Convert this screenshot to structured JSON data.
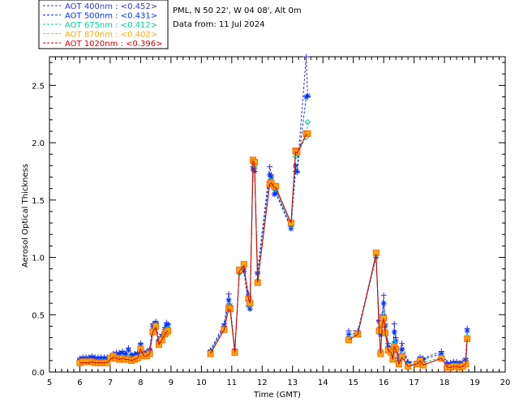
{
  "header": {
    "site_line": "PML, N 50 22', W 04 08', Alt 0m",
    "date_line": "Data from: 11 Jul 2024"
  },
  "chart_data": {
    "type": "line",
    "xlabel": "Time (GMT)",
    "ylabel": "Aerosol Optical Thickness",
    "xlim": [
      5,
      20
    ],
    "ylim": [
      0,
      2.75
    ],
    "x_ticks": [
      "5",
      "6",
      "7",
      "8",
      "9",
      "10",
      "11",
      "12",
      "13",
      "14",
      "15",
      "16",
      "17",
      "18",
      "19",
      "20"
    ],
    "y_ticks": [
      "0.0",
      "0.5",
      "1.0",
      "1.5",
      "2.0",
      "2.5"
    ],
    "grid": false,
    "legend_placement": "top-left-outside",
    "series": [
      {
        "name": "AOT  400nm : <0.452>",
        "color": "#3333cc",
        "marker": "plus",
        "x": [
          6.0,
          6.1,
          6.2,
          6.3,
          6.4,
          6.5,
          6.6,
          6.7,
          6.8,
          6.9,
          7.0,
          7.1,
          7.2,
          7.3,
          7.4,
          7.5,
          7.6,
          7.7,
          7.8,
          7.9,
          8.0,
          8.1,
          8.2,
          8.3,
          8.4,
          8.5,
          8.6,
          8.7,
          8.8,
          8.85,
          8.9,
          10.3,
          10.75,
          10.9,
          10.95,
          11.1,
          11.25,
          11.4,
          11.55,
          11.6,
          11.7,
          11.75,
          11.85,
          12.25,
          12.3,
          12.4,
          12.45,
          12.95,
          13.1,
          13.15,
          13.45,
          13.5,
          14.85,
          15.15,
          15.75,
          15.85,
          15.9,
          15.95,
          16.0,
          16.05,
          16.15,
          16.25,
          16.3,
          16.35,
          16.4,
          16.5,
          16.6,
          16.8,
          17.1,
          17.2,
          17.3,
          17.9,
          18.1,
          18.2,
          18.3,
          18.4,
          18.5,
          18.6,
          18.7,
          18.75
        ],
        "values": [
          0.12,
          0.13,
          0.13,
          0.13,
          0.14,
          0.13,
          0.13,
          0.13,
          0.13,
          0.13,
          0.14,
          0.16,
          0.17,
          0.17,
          0.18,
          0.16,
          0.21,
          0.15,
          0.16,
          0.17,
          0.25,
          0.18,
          0.18,
          0.2,
          0.42,
          0.44,
          0.28,
          0.33,
          0.39,
          0.43,
          0.42,
          0.19,
          0.42,
          0.68,
          0.55,
          0.2,
          0.87,
          0.9,
          0.68,
          0.6,
          1.79,
          1.78,
          0.87,
          1.79,
          1.72,
          1.6,
          1.58,
          1.27,
          1.75,
          1.74,
          2.75,
          2.4,
          0.36,
          0.36,
          1.02,
          0.45,
          0.35,
          0.5,
          0.67,
          0.42,
          0.25,
          0.2,
          0.18,
          0.42,
          0.3,
          0.12,
          0.25,
          0.09,
          0.09,
          0.13,
          0.12,
          0.18,
          0.08,
          0.08,
          0.09,
          0.09,
          0.08,
          0.09,
          0.12,
          0.38
        ]
      },
      {
        "name": "AOT  500nm : <0.431>",
        "color": "#0033ff",
        "marker": "asterisk",
        "x": [
          6.0,
          6.1,
          6.2,
          6.3,
          6.4,
          6.5,
          6.6,
          6.7,
          6.8,
          6.9,
          7.0,
          7.1,
          7.2,
          7.3,
          7.4,
          7.5,
          7.6,
          7.7,
          7.8,
          7.9,
          8.0,
          8.1,
          8.2,
          8.3,
          8.4,
          8.5,
          8.6,
          8.7,
          8.8,
          8.85,
          8.9,
          10.3,
          10.75,
          10.9,
          10.95,
          11.1,
          11.25,
          11.4,
          11.55,
          11.6,
          11.7,
          11.75,
          11.85,
          12.25,
          12.3,
          12.4,
          12.45,
          12.95,
          13.1,
          13.15,
          13.45,
          13.5,
          14.85,
          15.15,
          15.75,
          15.85,
          15.9,
          15.95,
          16.0,
          16.05,
          16.15,
          16.25,
          16.3,
          16.35,
          16.4,
          16.5,
          16.6,
          16.8,
          17.1,
          17.2,
          17.3,
          17.9,
          18.1,
          18.2,
          18.3,
          18.4,
          18.5,
          18.6,
          18.7,
          18.75
        ],
        "values": [
          0.11,
          0.12,
          0.12,
          0.12,
          0.13,
          0.12,
          0.12,
          0.12,
          0.12,
          0.12,
          0.13,
          0.15,
          0.16,
          0.16,
          0.17,
          0.15,
          0.19,
          0.14,
          0.15,
          0.16,
          0.24,
          0.17,
          0.17,
          0.19,
          0.4,
          0.43,
          0.27,
          0.31,
          0.37,
          0.41,
          0.41,
          0.18,
          0.4,
          0.63,
          0.58,
          0.18,
          0.87,
          0.88,
          0.58,
          0.55,
          1.77,
          1.75,
          0.86,
          1.72,
          1.7,
          1.55,
          1.56,
          1.25,
          1.8,
          1.75,
          2.4,
          2.41,
          0.33,
          0.34,
          1.0,
          0.44,
          0.33,
          0.48,
          0.6,
          0.4,
          0.22,
          0.18,
          0.17,
          0.35,
          0.27,
          0.1,
          0.2,
          0.08,
          0.08,
          0.12,
          0.11,
          0.16,
          0.07,
          0.07,
          0.08,
          0.08,
          0.07,
          0.08,
          0.1,
          0.36
        ]
      },
      {
        "name": "AOT  675nm : <0.412>",
        "color": "#00cc99",
        "marker": "diamond",
        "x": [
          6.0,
          6.1,
          6.2,
          6.3,
          6.4,
          6.5,
          6.6,
          6.7,
          6.8,
          6.9,
          7.0,
          7.1,
          7.2,
          7.3,
          7.4,
          7.5,
          7.6,
          7.7,
          7.8,
          7.9,
          8.0,
          8.1,
          8.2,
          8.3,
          8.4,
          8.5,
          8.6,
          8.7,
          8.8,
          8.85,
          8.9,
          10.3,
          10.75,
          10.9,
          10.95,
          11.1,
          11.25,
          11.4,
          11.55,
          11.6,
          11.7,
          11.75,
          11.85,
          12.25,
          12.3,
          12.4,
          12.45,
          12.95,
          13.1,
          13.15,
          13.45,
          13.5,
          14.85,
          15.15,
          15.75,
          15.85,
          15.9,
          15.95,
          16.0,
          16.05,
          16.15,
          16.25,
          16.3,
          16.35,
          16.4,
          16.5,
          16.6,
          16.8,
          17.1,
          17.2,
          17.3,
          17.9,
          18.1,
          18.2,
          18.3,
          18.4,
          18.5,
          18.6,
          18.7,
          18.75
        ],
        "values": [
          0.09,
          0.1,
          0.1,
          0.1,
          0.1,
          0.09,
          0.09,
          0.09,
          0.09,
          0.09,
          0.12,
          0.14,
          0.13,
          0.12,
          0.13,
          0.12,
          0.13,
          0.11,
          0.12,
          0.13,
          0.21,
          0.15,
          0.15,
          0.17,
          0.36,
          0.41,
          0.25,
          0.29,
          0.34,
          0.37,
          0.38,
          0.17,
          0.38,
          0.58,
          0.56,
          0.18,
          0.86,
          0.92,
          0.62,
          0.58,
          1.82,
          1.8,
          0.8,
          1.66,
          1.67,
          1.6,
          1.6,
          1.28,
          1.88,
          1.9,
          2.05,
          2.18,
          0.3,
          0.34,
          1.02,
          0.38,
          0.19,
          0.44,
          0.5,
          0.36,
          0.2,
          0.18,
          0.12,
          0.26,
          0.22,
          0.08,
          0.15,
          0.06,
          0.07,
          0.1,
          0.08,
          0.13,
          0.05,
          0.05,
          0.06,
          0.06,
          0.05,
          0.06,
          0.08,
          0.31
        ]
      },
      {
        "name": "AOT  870nm : <0.402>",
        "color": "#ffaa00",
        "marker": "square",
        "x": [
          6.0,
          6.1,
          6.2,
          6.3,
          6.4,
          6.5,
          6.6,
          6.7,
          6.8,
          6.9,
          7.0,
          7.1,
          7.2,
          7.3,
          7.4,
          7.5,
          7.6,
          7.7,
          7.8,
          7.9,
          8.0,
          8.1,
          8.2,
          8.3,
          8.4,
          8.5,
          8.6,
          8.7,
          8.8,
          8.85,
          8.9,
          10.3,
          10.75,
          10.9,
          10.95,
          11.1,
          11.25,
          11.4,
          11.55,
          11.6,
          11.7,
          11.75,
          11.85,
          12.25,
          12.3,
          12.4,
          12.45,
          12.95,
          13.1,
          13.15,
          13.45,
          13.5,
          14.85,
          15.15,
          15.75,
          15.85,
          15.9,
          15.95,
          16.0,
          16.05,
          16.15,
          16.25,
          16.3,
          16.35,
          16.4,
          16.5,
          16.6,
          16.8,
          17.1,
          17.2,
          17.3,
          17.9,
          18.1,
          18.2,
          18.3,
          18.4,
          18.5,
          18.6,
          18.7,
          18.75
        ],
        "values": [
          0.08,
          0.09,
          0.09,
          0.09,
          0.09,
          0.08,
          0.08,
          0.08,
          0.08,
          0.08,
          0.12,
          0.14,
          0.12,
          0.11,
          0.12,
          0.11,
          0.11,
          0.1,
          0.11,
          0.12,
          0.2,
          0.14,
          0.14,
          0.16,
          0.35,
          0.4,
          0.24,
          0.28,
          0.33,
          0.35,
          0.36,
          0.16,
          0.37,
          0.56,
          0.55,
          0.17,
          0.89,
          0.94,
          0.64,
          0.6,
          1.85,
          1.83,
          0.78,
          1.64,
          1.65,
          1.62,
          1.62,
          1.3,
          1.93,
          1.92,
          2.08,
          2.08,
          0.28,
          0.33,
          1.04,
          0.36,
          0.16,
          0.42,
          0.47,
          0.34,
          0.19,
          0.17,
          0.11,
          0.22,
          0.2,
          0.07,
          0.13,
          0.05,
          0.07,
          0.1,
          0.06,
          0.12,
          0.04,
          0.04,
          0.05,
          0.05,
          0.04,
          0.05,
          0.07,
          0.29
        ]
      },
      {
        "name": "AOT 1020nm : <0.396>",
        "color": "#cc0000",
        "marker": "none",
        "x": [
          6.0,
          6.1,
          6.2,
          6.3,
          6.4,
          6.5,
          6.6,
          6.7,
          6.8,
          6.9,
          7.0,
          7.1,
          7.2,
          7.3,
          7.4,
          7.5,
          7.6,
          7.7,
          7.8,
          7.9,
          8.0,
          8.1,
          8.2,
          8.3,
          8.4,
          8.5,
          8.6,
          8.7,
          8.8,
          8.85,
          8.9,
          10.3,
          10.75,
          10.9,
          10.95,
          11.1,
          11.25,
          11.4,
          11.55,
          11.6,
          11.7,
          11.75,
          11.85,
          12.25,
          12.3,
          12.4,
          12.45,
          12.95,
          13.1,
          13.15,
          13.45,
          13.5,
          14.85,
          15.15,
          15.75,
          15.85,
          15.9,
          15.95,
          16.0,
          16.05,
          16.15,
          16.25,
          16.3,
          16.35,
          16.4,
          16.5,
          16.6,
          16.8,
          17.1,
          17.2,
          17.3,
          17.9,
          18.1,
          18.2,
          18.3,
          18.4,
          18.5,
          18.6,
          18.7,
          18.75
        ],
        "values": [
          0.08,
          0.08,
          0.08,
          0.08,
          0.09,
          0.08,
          0.08,
          0.08,
          0.08,
          0.08,
          0.11,
          0.13,
          0.12,
          0.11,
          0.12,
          0.11,
          0.11,
          0.1,
          0.11,
          0.12,
          0.2,
          0.14,
          0.14,
          0.16,
          0.35,
          0.39,
          0.24,
          0.28,
          0.33,
          0.35,
          0.36,
          0.16,
          0.37,
          0.55,
          0.54,
          0.17,
          0.88,
          0.93,
          0.64,
          0.6,
          1.84,
          1.82,
          0.78,
          1.64,
          1.65,
          1.61,
          1.61,
          1.3,
          1.92,
          1.91,
          2.07,
          2.07,
          0.28,
          0.33,
          1.03,
          0.36,
          0.16,
          0.41,
          0.47,
          0.34,
          0.19,
          0.17,
          0.11,
          0.22,
          0.2,
          0.07,
          0.13,
          0.05,
          0.07,
          0.1,
          0.06,
          0.12,
          0.04,
          0.04,
          0.05,
          0.05,
          0.04,
          0.05,
          0.07,
          0.29
        ]
      }
    ]
  }
}
